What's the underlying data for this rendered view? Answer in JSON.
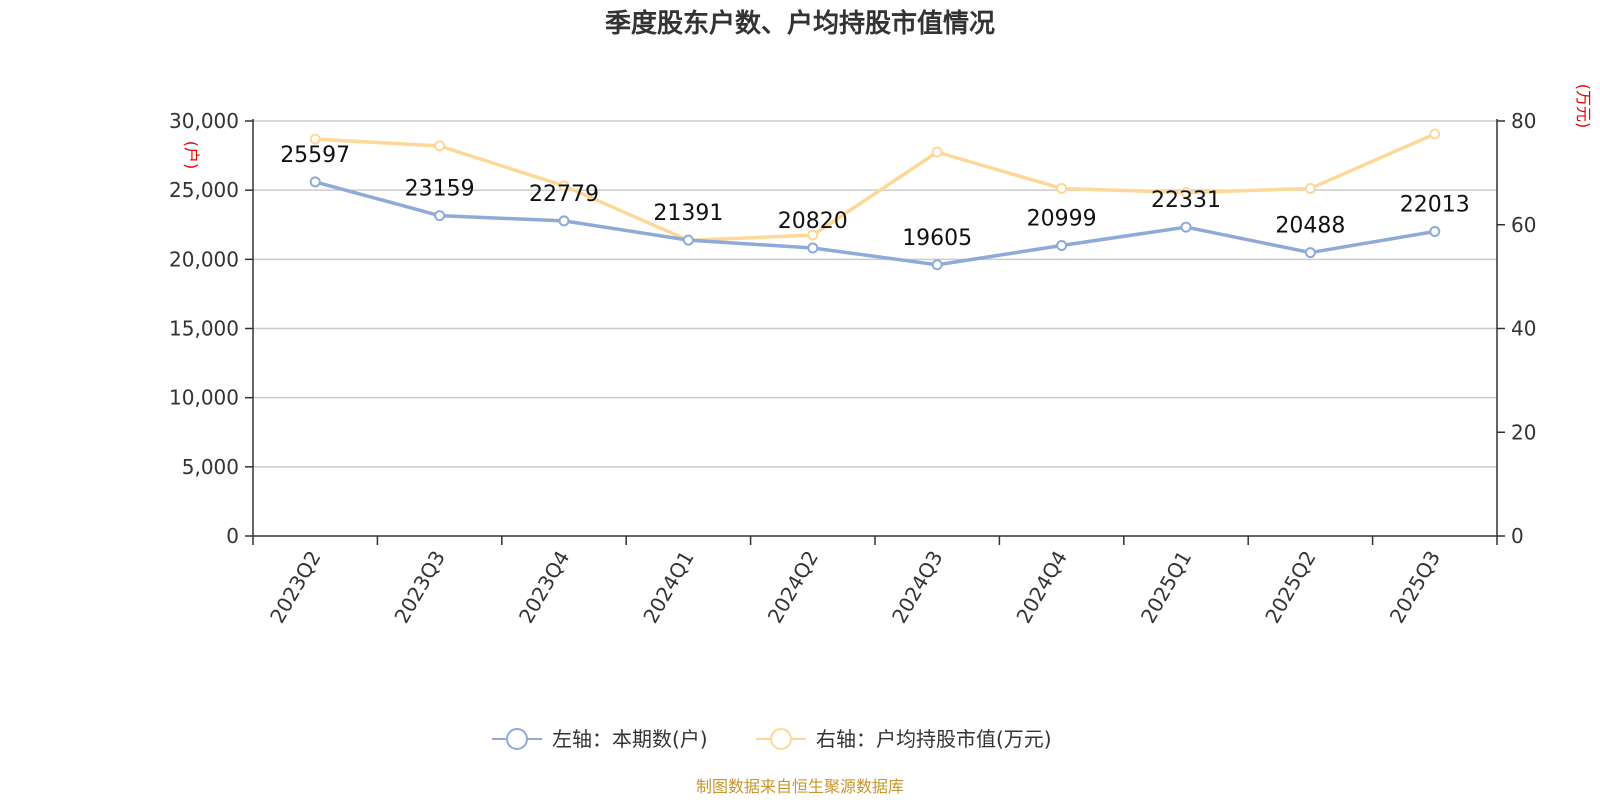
{
  "chart_data": {
    "type": "line",
    "title": "季度股东户数、户均持股市值情况",
    "categories": [
      "2023Q2",
      "2023Q3",
      "2023Q4",
      "2024Q1",
      "2024Q2",
      "2024Q3",
      "2024Q4",
      "2025Q1",
      "2025Q2",
      "2025Q3"
    ],
    "series": [
      {
        "name": "左轴：本期数(户)",
        "axis": "left",
        "color": "#8eaad8",
        "values": [
          25597,
          23159,
          22779,
          21391,
          20820,
          19605,
          20999,
          22331,
          20488,
          22013
        ],
        "labels": [
          "25597",
          "23159",
          "22779",
          "21391",
          "20820",
          "19605",
          "20999",
          "22331",
          "20488",
          "22013"
        ]
      },
      {
        "name": "右轴：户均持股市值(万元)",
        "axis": "right",
        "color": "#fdd898",
        "values": [
          76.5,
          75.2,
          67.5,
          57.0,
          58.0,
          74.0,
          67.0,
          66.2,
          67.0,
          77.5
        ]
      }
    ],
    "y_left": {
      "unit": "(户)",
      "min": 0,
      "max": 30000,
      "ticks": [
        0,
        5000,
        10000,
        15000,
        20000,
        25000,
        30000
      ],
      "tick_labels": [
        "0",
        "5,000",
        "10,000",
        "15,000",
        "20,000",
        "25,000",
        "30,000"
      ]
    },
    "y_right": {
      "unit": "(万元)",
      "min": 0,
      "max": 80,
      "ticks": [
        0,
        20,
        40,
        60,
        80
      ],
      "tick_labels": [
        "0",
        "20",
        "40",
        "60",
        "80"
      ]
    },
    "grid": true,
    "legend_position": "bottom-center"
  },
  "source": "制图数据来自恒生聚源数据库"
}
